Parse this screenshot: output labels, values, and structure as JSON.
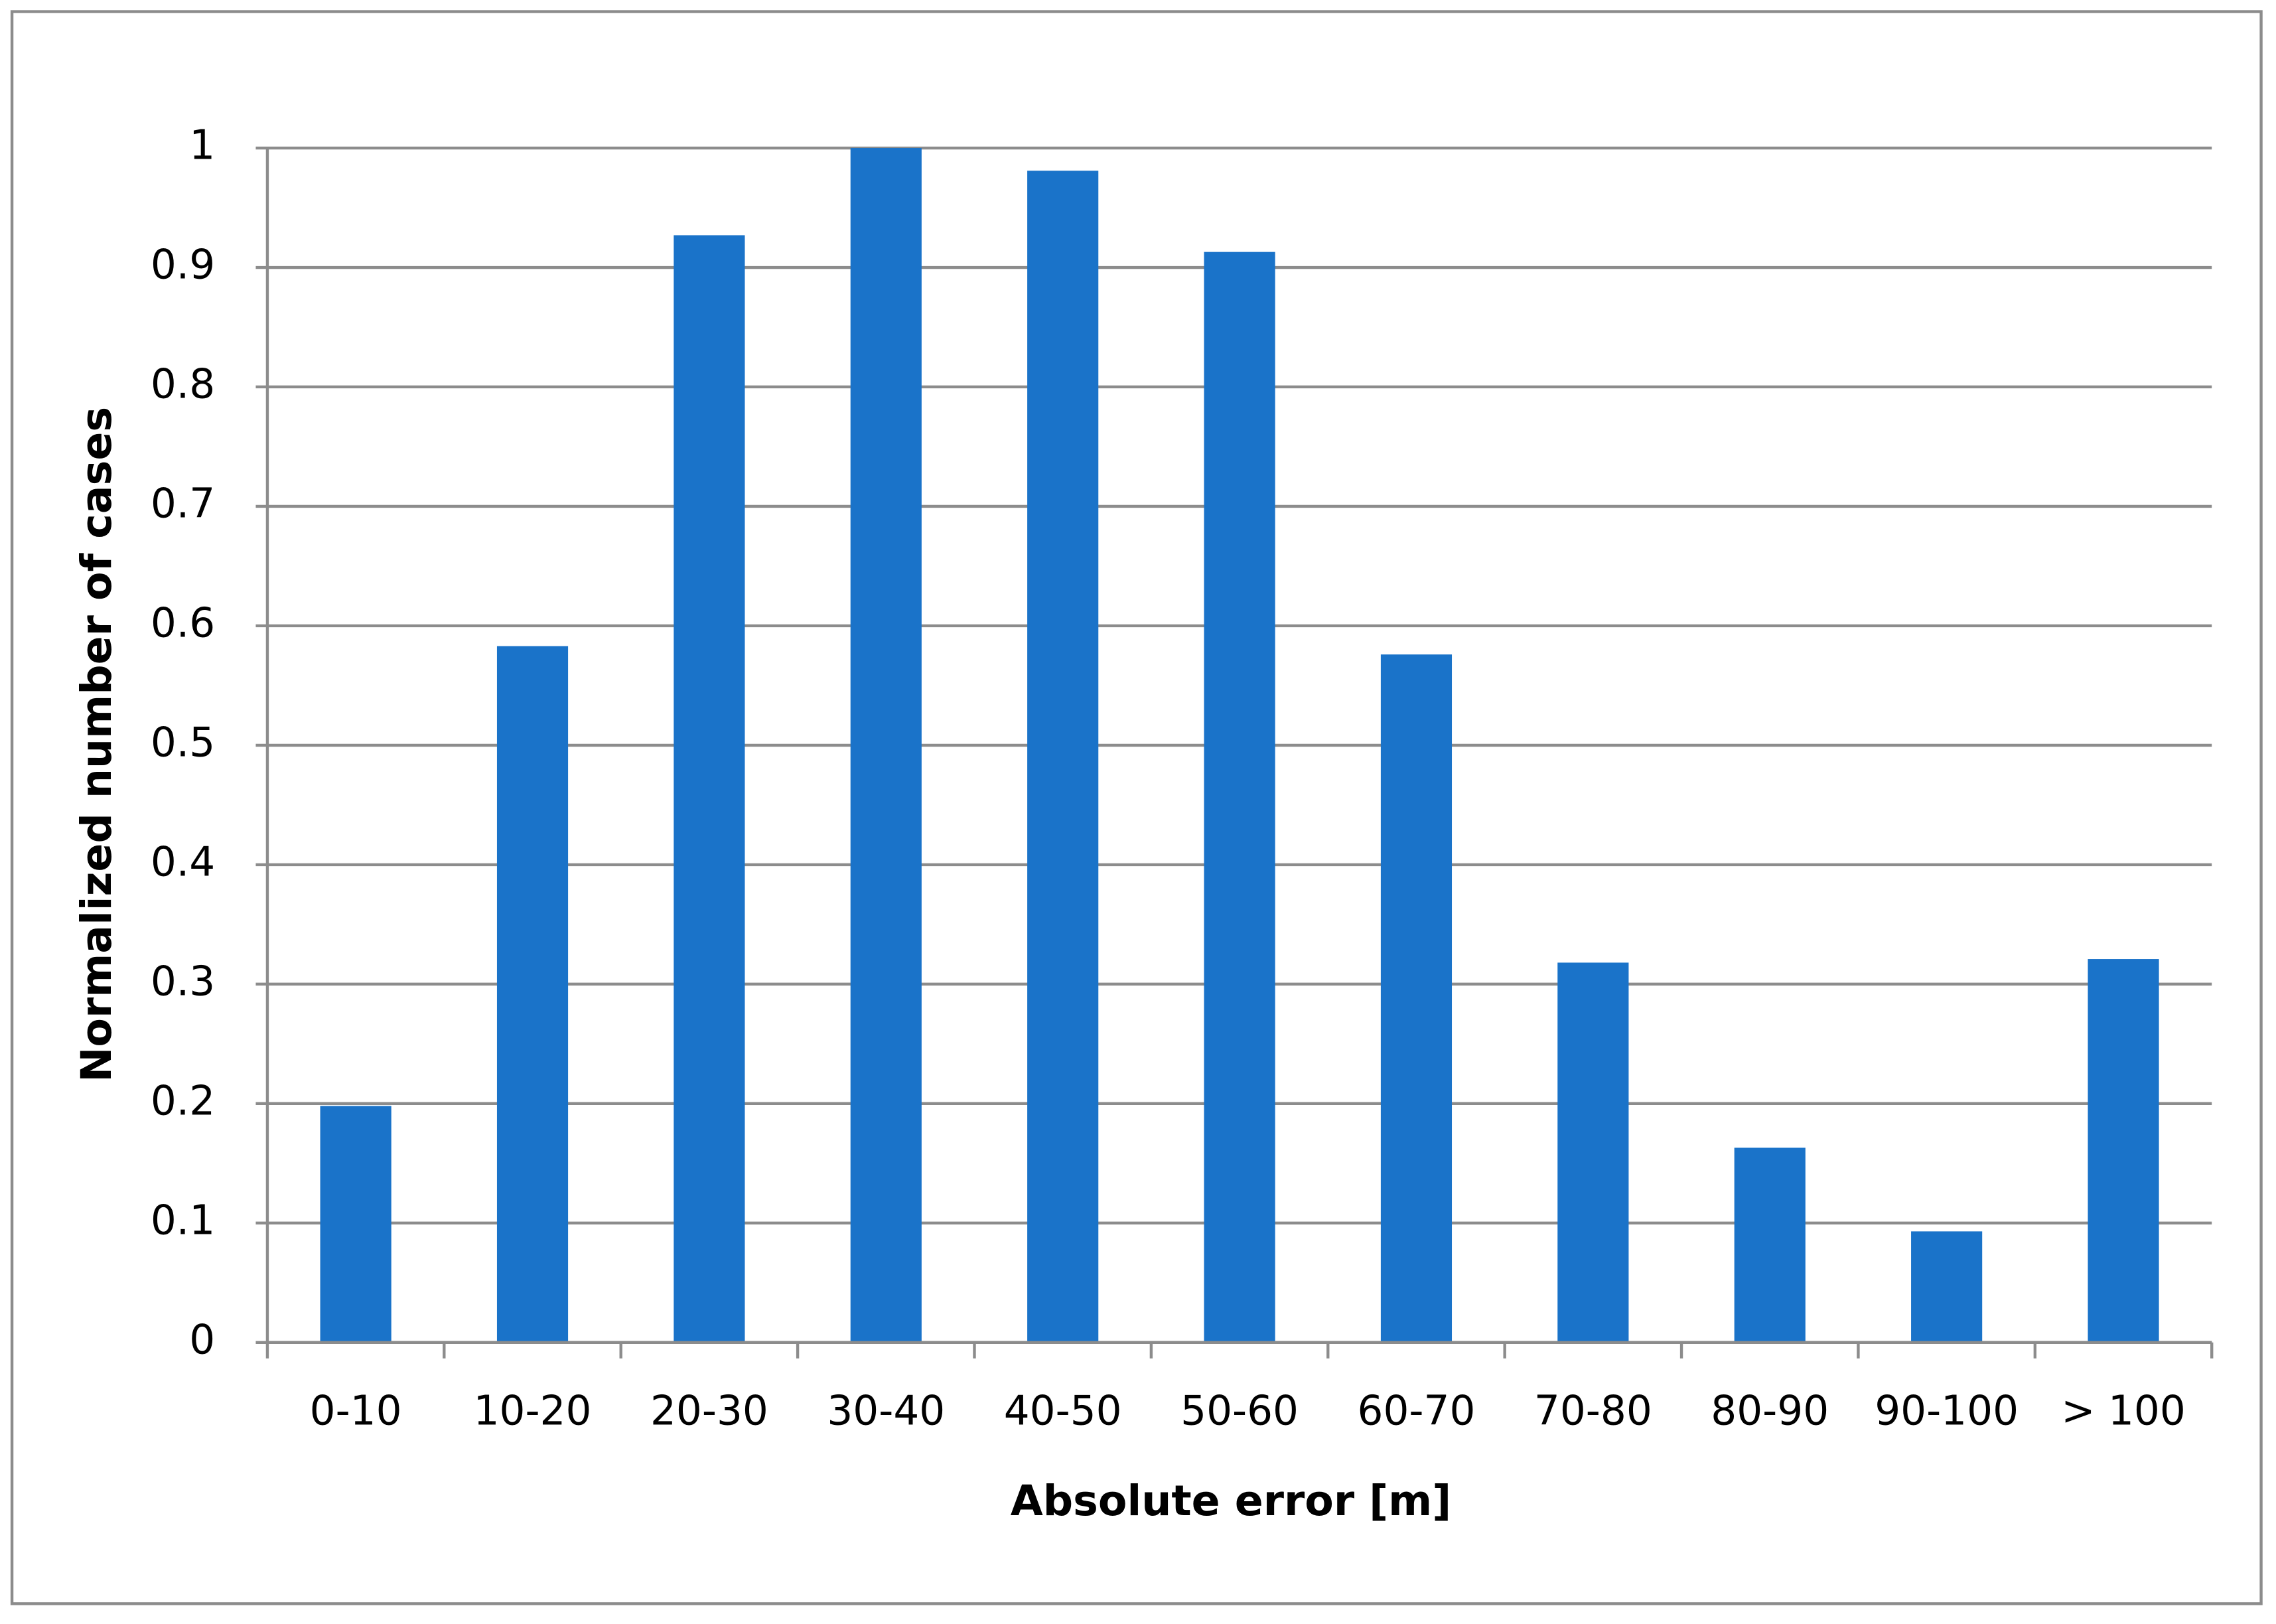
{
  "chart_data": {
    "type": "bar",
    "x_label": "Absolute error [m]",
    "y_label": "Normalized number of cases",
    "categories": [
      "0-10",
      "10-20",
      "20-30",
      "30-40",
      "40-50",
      "50-60",
      "60-70",
      "70-80",
      "80-90",
      "90-100",
      "> 100"
    ],
    "values": [
      0.198,
      0.583,
      0.927,
      1.0,
      0.981,
      0.913,
      0.576,
      0.318,
      0.163,
      0.093,
      0.321
    ],
    "color": "#1a73c9",
    "ylim": [
      0,
      1
    ],
    "yticks": [
      0,
      0.1,
      0.2,
      0.3,
      0.4,
      0.5,
      0.6,
      0.7,
      0.8,
      0.9,
      1
    ],
    "grid": true
  }
}
